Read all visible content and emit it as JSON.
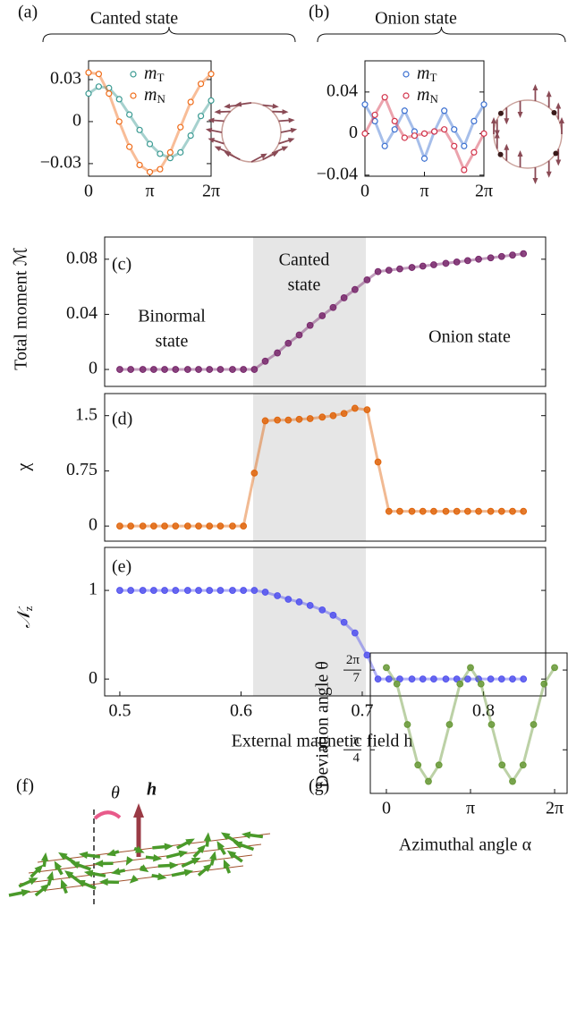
{
  "chart_data": [
    {
      "type": "line",
      "panel_label": "(a)",
      "title": "Canted state",
      "marker": "open",
      "legend": "upper right",
      "x": [
        0,
        0.5236,
        1.0472,
        1.5708,
        2.0944,
        2.618,
        3.1416,
        3.6652,
        4.1888,
        4.7124,
        5.236,
        5.7596,
        6.2832
      ],
      "xlim": [
        0,
        6.2832
      ],
      "xticks": [
        0,
        {
          "value": 3.1416,
          "label": "π"
        },
        {
          "value": 6.2832,
          "label": "2π"
        }
      ],
      "ylim": [
        -0.039,
        0.0434
      ],
      "yticks": [
        0.03,
        0,
        {
          "value": -0.03,
          "label": "−0.03"
        }
      ],
      "series": [
        {
          "name": "mT",
          "color": "#3a9a92",
          "values": [
            0.02,
            0.025,
            0.024,
            0.016,
            0.005,
            -0.006,
            -0.016,
            -0.023,
            -0.026,
            -0.022,
            -0.01,
            0.004,
            0.015
          ]
        },
        {
          "name": "mN",
          "color": "#ef6c1a",
          "values": [
            0.035,
            0.034,
            0.02,
            0.0,
            -0.018,
            -0.031,
            -0.036,
            -0.034,
            -0.022,
            -0.004,
            0.014,
            0.027,
            0.034
          ]
        }
      ]
    },
    {
      "type": "line",
      "panel_label": "(b)",
      "title": "Onion state",
      "marker": "open",
      "legend": "upper right",
      "x": [
        0,
        0.5236,
        1.0472,
        1.5708,
        2.0944,
        2.618,
        3.1416,
        3.6652,
        4.1888,
        4.7124,
        5.236,
        5.7596,
        6.2832
      ],
      "xlim": [
        0,
        6.2832
      ],
      "xticks": [
        0,
        {
          "value": 3.1416,
          "label": "π"
        },
        {
          "value": 6.2832,
          "label": "2π"
        }
      ],
      "ylim": [
        -0.041,
        0.07
      ],
      "yticks": [
        0.04,
        0,
        {
          "value": -0.04,
          "label": "−0.04"
        }
      ],
      "series": [
        {
          "name": "mT",
          "color": "#3a6fd0",
          "values": [
            0.028,
            0.012,
            -0.012,
            0.004,
            0.022,
            0.002,
            -0.024,
            0.002,
            0.022,
            0.004,
            -0.012,
            0.012,
            0.028
          ]
        },
        {
          "name": "mN",
          "color": "#d2334a",
          "values": [
            0.0,
            0.018,
            0.035,
            0.012,
            -0.004,
            -0.002,
            0.0,
            0.002,
            0.004,
            -0.012,
            -0.035,
            -0.018,
            0.0
          ]
        }
      ]
    },
    {
      "type": "line",
      "panel_label": "(c)",
      "marker": "filled",
      "ylabel": "Total moment ℳ",
      "annotations": [
        [
          "Binormal",
          "state"
        ],
        [
          "Canted",
          "state"
        ],
        [
          "Onion state"
        ]
      ],
      "shaded_range": [
        0.61,
        0.703
      ],
      "x": [
        0.5,
        0.509,
        0.519,
        0.528,
        0.537,
        0.546,
        0.556,
        0.565,
        0.574,
        0.583,
        0.593,
        0.602,
        0.611,
        0.62,
        0.63,
        0.639,
        0.648,
        0.657,
        0.667,
        0.676,
        0.685,
        0.694,
        0.704,
        0.713,
        0.722,
        0.731,
        0.741,
        0.75,
        0.759,
        0.769,
        0.778,
        0.787,
        0.796,
        0.806,
        0.815,
        0.824,
        0.833
      ],
      "xlim": [
        0.4875,
        0.8513
      ],
      "ylim": [
        -0.0123,
        0.0961
      ],
      "yticks": [
        0,
        0.04,
        0.08
      ],
      "series": [
        {
          "color": "#7a2b6e",
          "values": [
            0,
            0,
            0,
            0,
            0,
            0,
            0,
            0,
            0,
            0,
            0,
            0,
            0,
            0.006,
            0.012,
            0.019,
            0.025,
            0.032,
            0.039,
            0.045,
            0.052,
            0.058,
            0.065,
            0.071,
            0.072,
            0.073,
            0.074,
            0.075,
            0.076,
            0.077,
            0.078,
            0.079,
            0.08,
            0.081,
            0.082,
            0.083,
            0.084
          ]
        }
      ]
    },
    {
      "type": "line",
      "panel_label": "(d)",
      "marker": "filled",
      "ylabel": "χ",
      "shaded_range": [
        0.61,
        0.703
      ],
      "x": [
        0.5,
        0.509,
        0.519,
        0.528,
        0.537,
        0.546,
        0.556,
        0.565,
        0.574,
        0.583,
        0.593,
        0.602,
        0.611,
        0.62,
        0.63,
        0.639,
        0.648,
        0.657,
        0.667,
        0.676,
        0.685,
        0.694,
        0.704,
        0.713,
        0.722,
        0.731,
        0.741,
        0.75,
        0.759,
        0.769,
        0.778,
        0.787,
        0.796,
        0.806,
        0.815,
        0.824,
        0.833
      ],
      "xlim": [
        0.4875,
        0.8513
      ],
      "ylim": [
        -0.205,
        1.8
      ],
      "yticks": [
        0,
        0.75,
        1.5
      ],
      "series": [
        {
          "color": "#e0670f",
          "values": [
            0,
            0,
            0,
            0,
            0,
            0,
            0,
            0,
            0,
            0,
            0,
            0,
            0.72,
            1.43,
            1.44,
            1.44,
            1.45,
            1.46,
            1.48,
            1.5,
            1.53,
            1.6,
            1.58,
            0.87,
            0.2,
            0.2,
            0.2,
            0.2,
            0.2,
            0.2,
            0.2,
            0.2,
            0.2,
            0.2,
            0.2,
            0.2,
            0.2
          ]
        }
      ]
    },
    {
      "type": "line",
      "panel_label": "(e)",
      "marker": "filled",
      "ylabel": "𝒩z",
      "xlabel": "External magnetic field h",
      "shaded_range": [
        0.61,
        0.703
      ],
      "x": [
        0.5,
        0.509,
        0.519,
        0.528,
        0.537,
        0.546,
        0.556,
        0.565,
        0.574,
        0.583,
        0.593,
        0.602,
        0.611,
        0.62,
        0.63,
        0.639,
        0.648,
        0.657,
        0.667,
        0.676,
        0.685,
        0.694,
        0.704,
        0.713,
        0.722,
        0.731,
        0.741,
        0.75,
        0.759,
        0.769,
        0.778,
        0.787,
        0.796,
        0.806,
        0.815,
        0.824,
        0.833
      ],
      "xlim": [
        0.4875,
        0.8513
      ],
      "xticks": [
        0.5,
        0.6,
        0.7,
        0.8
      ],
      "ylim": [
        -0.19,
        1.485
      ],
      "yticks": [
        0,
        1
      ],
      "series": [
        {
          "color": "#5555ee",
          "values": [
            1,
            1,
            1,
            1,
            1,
            1,
            1,
            1,
            1,
            1,
            1,
            1,
            1,
            0.98,
            0.94,
            0.9,
            0.87,
            0.83,
            0.78,
            0.72,
            0.64,
            0.52,
            0.27,
            0,
            0,
            0,
            0,
            0,
            0,
            0,
            0,
            0,
            0,
            0,
            0,
            0,
            0
          ]
        }
      ]
    },
    {
      "type": "line",
      "panel_label": "(g)",
      "marker": "filled",
      "ylabel": "Deviation angle θ",
      "xlabel": "Azimuthal angle α",
      "x": [
        0,
        0.3927,
        0.7854,
        1.1781,
        1.5708,
        1.9635,
        2.3562,
        2.7489,
        3.1416,
        3.5343,
        3.927,
        4.3197,
        4.7124,
        5.1051,
        5.4978,
        5.8905,
        6.2832
      ],
      "xlim": [
        -0.6,
        6.75
      ],
      "xticks": [
        0,
        {
          "value": 3.1416,
          "label": "π"
        },
        {
          "value": 6.2832,
          "label": "2π"
        }
      ],
      "ylim": [
        0.7241,
        0.9216
      ],
      "yticks": [
        {
          "value": 0.8976,
          "label": "2π/7"
        },
        {
          "value": 0.7854,
          "label": "π/4"
        }
      ],
      "series": [
        {
          "color": "#6a9a3a",
          "values": [
            0.901,
            0.878,
            0.821,
            0.764,
            0.741,
            0.764,
            0.821,
            0.878,
            0.901,
            0.878,
            0.821,
            0.764,
            0.741,
            0.764,
            0.821,
            0.878,
            0.901
          ]
        }
      ]
    }
  ],
  "diagram": {
    "panel_label": "(f)",
    "angle_label": "θ",
    "field_label": "h"
  }
}
